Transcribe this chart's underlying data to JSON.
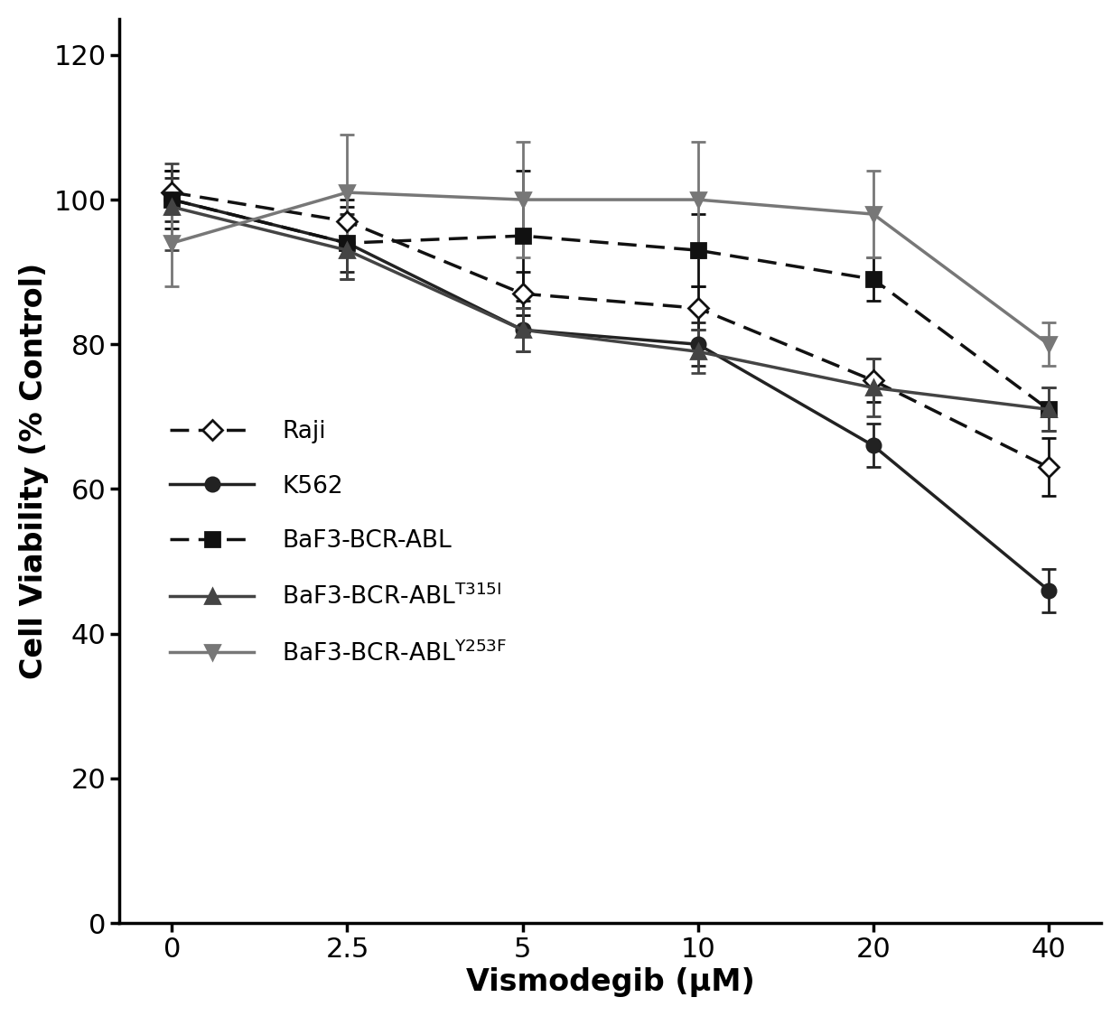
{
  "x_positions": [
    0,
    1,
    2,
    3,
    4,
    5
  ],
  "x_labels": [
    "0",
    "2.5",
    "5",
    "10",
    "20",
    "40"
  ],
  "series": {
    "Raji": {
      "y": [
        101,
        97,
        87,
        85,
        75,
        63
      ],
      "yerr": [
        3,
        3,
        3,
        3,
        3,
        4
      ],
      "color": "#111111",
      "linestyle": "dashed",
      "marker": "D",
      "markersize": 11,
      "linewidth": 2.5,
      "markerfacecolor": "white",
      "label": "Raji",
      "dashes": [
        6,
        3
      ]
    },
    "K562": {
      "y": [
        100,
        94,
        82,
        80,
        66,
        46
      ],
      "yerr": [
        3,
        4,
        3,
        3,
        3,
        3
      ],
      "color": "#222222",
      "linestyle": "solid",
      "marker": "o",
      "markersize": 11,
      "linewidth": 2.5,
      "markerfacecolor": "#222222",
      "label": "K562"
    },
    "BaF3-BCR-ABL": {
      "y": [
        100,
        94,
        95,
        93,
        89,
        71
      ],
      "yerr": [
        4,
        5,
        9,
        5,
        3,
        3
      ],
      "color": "#111111",
      "linestyle": "dashed",
      "marker": "s",
      "markersize": 11,
      "linewidth": 2.5,
      "markerfacecolor": "#111111",
      "label": "BaF3-BCR-ABL",
      "dashes": [
        6,
        3
      ]
    },
    "BaF3-BCR-ABL-T315I": {
      "y": [
        99,
        93,
        82,
        79,
        74,
        71
      ],
      "yerr": [
        6,
        4,
        3,
        3,
        4,
        3
      ],
      "color": "#444444",
      "linestyle": "solid",
      "marker": "^",
      "markersize": 11,
      "linewidth": 2.5,
      "markerfacecolor": "#444444",
      "label_main": "BaF3-BCR-ABL",
      "label_super": "T315I"
    },
    "BaF3-BCR-ABL-Y253F": {
      "y": [
        94,
        101,
        100,
        100,
        98,
        80
      ],
      "yerr": [
        6,
        8,
        8,
        8,
        6,
        3
      ],
      "color": "#777777",
      "linestyle": "solid",
      "marker": "v",
      "markersize": 11,
      "linewidth": 2.5,
      "markerfacecolor": "#777777",
      "label_main": "BaF3-BCR-ABL",
      "label_super": "Y253F"
    }
  },
  "xlabel": "Vismodegib (μM)",
  "ylabel": "Cell Viability (% Control)",
  "ylim": [
    0,
    125
  ],
  "yticks": [
    0,
    20,
    40,
    60,
    80,
    100,
    120
  ],
  "background_color": "#ffffff",
  "label_fontsize": 24,
  "tick_fontsize": 22,
  "legend_fontsize": 19
}
